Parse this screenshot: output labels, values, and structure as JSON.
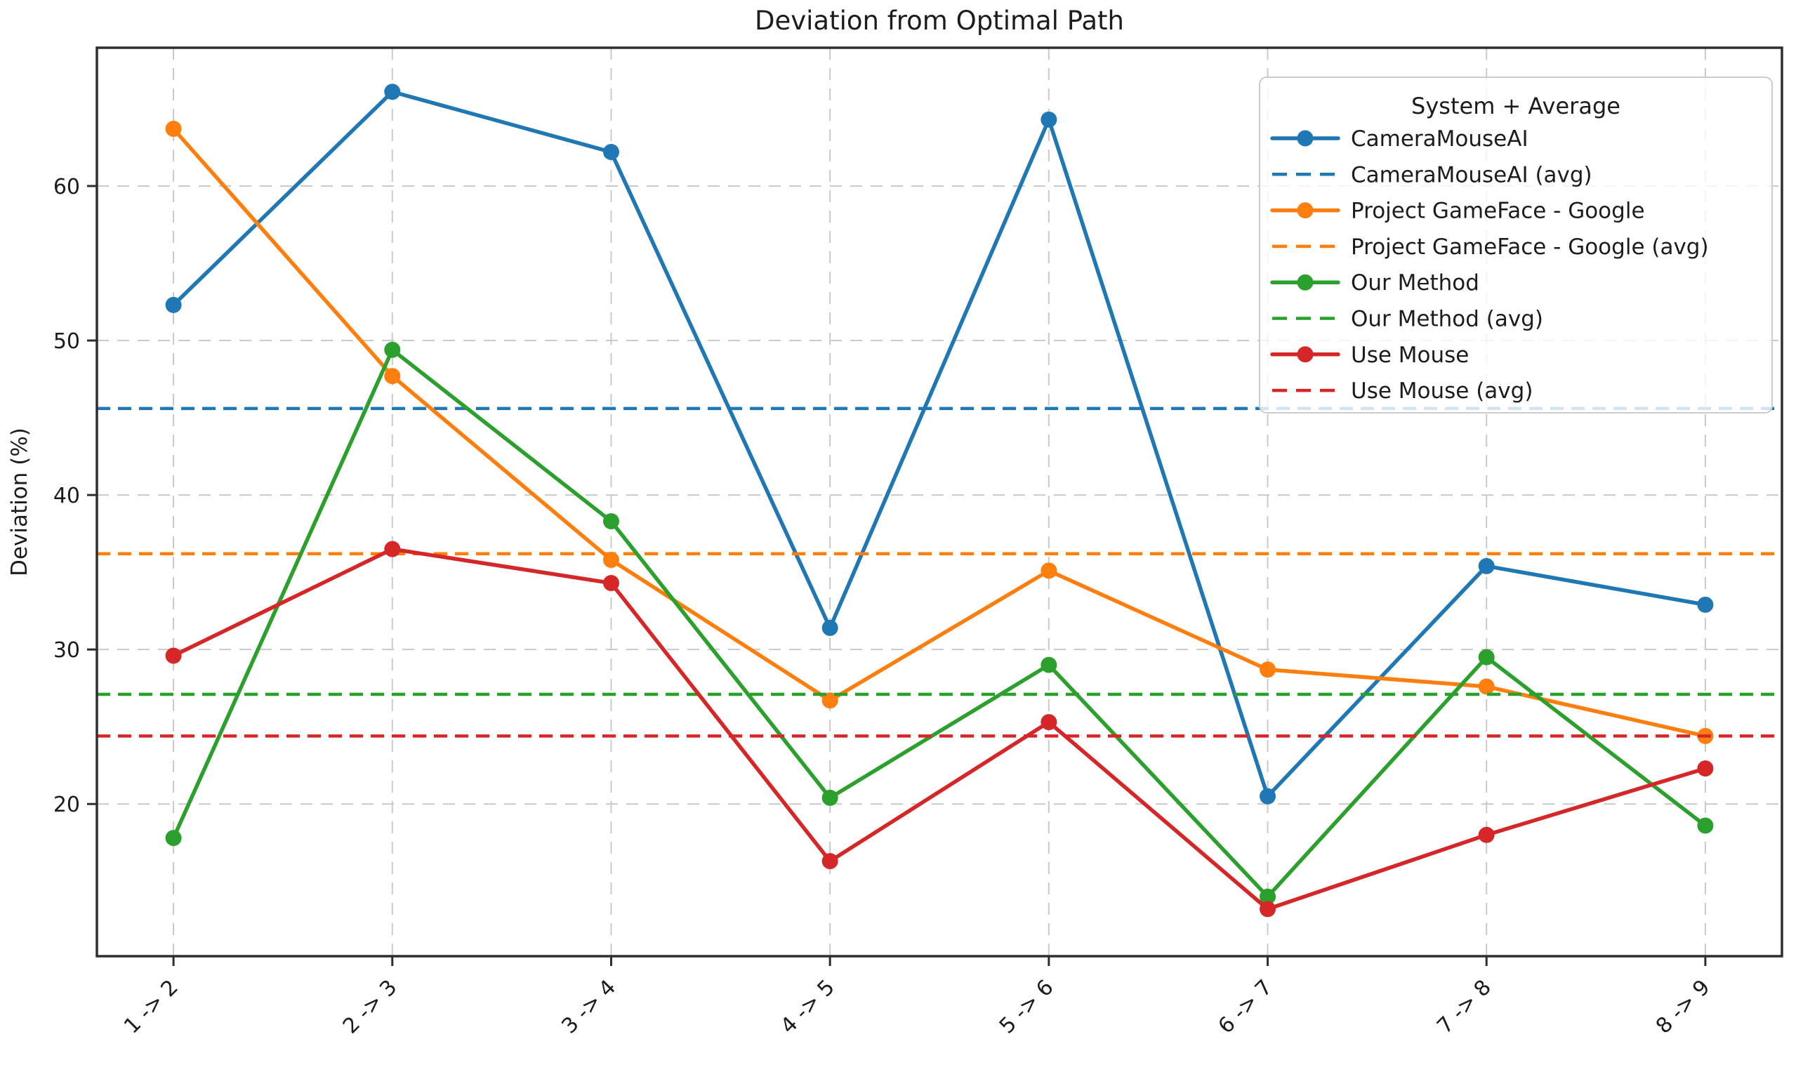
{
  "title": "Deviation from Optimal Path",
  "chart_data": {
    "type": "line",
    "title": "Deviation from Optimal Path",
    "xlabel": "",
    "ylabel": "Deviation (%)",
    "categories": [
      "1 -> 2",
      "2 -> 3",
      "3 -> 4",
      "4 -> 5",
      "5 -> 6",
      "6 -> 7",
      "7 -> 8",
      "8 -> 9"
    ],
    "yticks": [
      20,
      30,
      40,
      50,
      60
    ],
    "ylim": [
      10.2,
      69.0
    ],
    "grid": true,
    "grid_style": "dashed",
    "legend_position": "upper right",
    "series": [
      {
        "name": "CameraMouseAI",
        "color": "#1f77b4",
        "values": [
          52.3,
          66.1,
          62.2,
          31.4,
          64.3,
          20.5,
          35.4,
          32.9
        ],
        "avg": 45.6,
        "avg_label": "CameraMouseAI (avg)"
      },
      {
        "name": "Project GameFace - Google",
        "color": "#ff7f0e",
        "values": [
          63.7,
          47.7,
          35.8,
          26.7,
          35.1,
          28.7,
          27.6,
          24.4
        ],
        "avg": 36.2,
        "avg_label": "Project GameFace - Google (avg)"
      },
      {
        "name": "Our Method",
        "color": "#2ca02c",
        "values": [
          17.8,
          49.4,
          38.3,
          20.4,
          29.0,
          14.0,
          29.5,
          18.6
        ],
        "avg": 27.1,
        "avg_label": "Our Method (avg)"
      },
      {
        "name": "Use Mouse",
        "color": "#d62728",
        "values": [
          29.6,
          36.5,
          34.3,
          16.3,
          25.3,
          13.2,
          18.0,
          22.3
        ],
        "avg": 24.4,
        "avg_label": "Use Mouse (avg)"
      }
    ],
    "legend": {
      "title": "System + Average",
      "entries": [
        {
          "label": "CameraMouseAI",
          "color": "#1f77b4",
          "style": "solid-marker"
        },
        {
          "label": "CameraMouseAI (avg)",
          "color": "#1f77b4",
          "style": "dashed"
        },
        {
          "label": "Project GameFace - Google",
          "color": "#ff7f0e",
          "style": "solid-marker"
        },
        {
          "label": "Project GameFace - Google (avg)",
          "color": "#ff7f0e",
          "style": "dashed"
        },
        {
          "label": "Our Method",
          "color": "#2ca02c",
          "style": "solid-marker"
        },
        {
          "label": "Our Method (avg)",
          "color": "#2ca02c",
          "style": "dashed"
        },
        {
          "label": "Use Mouse",
          "color": "#d62728",
          "style": "solid-marker"
        },
        {
          "label": "Use Mouse (avg)",
          "color": "#d62728",
          "style": "dashed"
        }
      ]
    },
    "colors": {
      "grid": "#c9c9c9",
      "spine": "#2e2e2e",
      "text": "#1c1c1c",
      "background": "#ffffff"
    }
  }
}
